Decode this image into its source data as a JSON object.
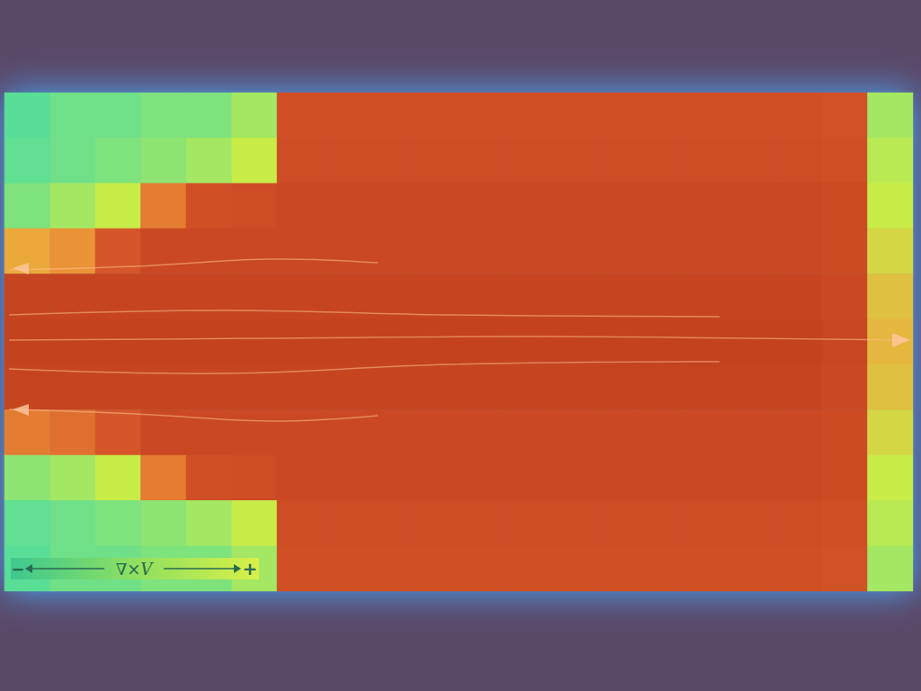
{
  "chart_data": {
    "type": "heatmap",
    "tick_labels": false,
    "grid": false,
    "cells": [
      [
        0.35,
        0.38,
        0.38,
        0.4,
        0.4,
        0.45,
        0.9,
        0.9,
        0.9,
        0.9,
        0.9,
        0.9,
        0.9,
        0.9,
        0.9,
        0.9,
        0.9,
        0.9,
        0.88,
        0.45
      ],
      [
        0.36,
        0.38,
        0.4,
        0.42,
        0.45,
        0.5,
        0.92,
        0.92,
        0.92,
        0.92,
        0.92,
        0.92,
        0.92,
        0.92,
        0.92,
        0.92,
        0.92,
        0.92,
        0.9,
        0.48
      ],
      [
        0.4,
        0.45,
        0.5,
        0.75,
        0.9,
        0.92,
        0.95,
        0.95,
        0.95,
        0.95,
        0.95,
        0.95,
        0.95,
        0.95,
        0.95,
        0.95,
        0.95,
        0.95,
        0.93,
        0.5
      ],
      [
        0.65,
        0.7,
        0.85,
        0.95,
        0.95,
        0.95,
        0.95,
        0.95,
        0.95,
        0.95,
        0.95,
        0.95,
        0.95,
        0.95,
        0.95,
        0.95,
        0.95,
        0.95,
        0.93,
        0.55
      ],
      [
        0.98,
        0.98,
        0.98,
        0.98,
        0.98,
        0.98,
        0.98,
        0.98,
        0.98,
        0.98,
        0.98,
        0.98,
        0.98,
        0.98,
        0.98,
        0.98,
        0.98,
        0.98,
        0.95,
        0.6
      ],
      [
        1,
        1,
        1,
        1,
        1,
        1,
        1,
        1,
        1,
        1,
        1,
        1,
        1,
        1,
        1,
        1,
        1,
        1,
        0.97,
        0.62
      ],
      [
        0.98,
        0.98,
        0.98,
        0.98,
        0.98,
        0.98,
        0.98,
        0.98,
        0.98,
        0.98,
        0.98,
        0.98,
        0.98,
        0.98,
        0.98,
        0.98,
        0.98,
        0.98,
        0.95,
        0.6
      ],
      [
        0.75,
        0.78,
        0.85,
        0.95,
        0.95,
        0.95,
        0.95,
        0.95,
        0.95,
        0.95,
        0.95,
        0.95,
        0.95,
        0.95,
        0.95,
        0.95,
        0.95,
        0.95,
        0.93,
        0.55
      ],
      [
        0.42,
        0.45,
        0.5,
        0.75,
        0.9,
        0.92,
        0.95,
        0.95,
        0.95,
        0.95,
        0.95,
        0.95,
        0.95,
        0.95,
        0.95,
        0.95,
        0.95,
        0.95,
        0.93,
        0.5
      ],
      [
        0.36,
        0.38,
        0.4,
        0.42,
        0.45,
        0.5,
        0.92,
        0.92,
        0.92,
        0.92,
        0.92,
        0.92,
        0.92,
        0.92,
        0.92,
        0.92,
        0.92,
        0.92,
        0.9,
        0.48
      ],
      [
        0.35,
        0.38,
        0.38,
        0.4,
        0.4,
        0.45,
        0.9,
        0.9,
        0.9,
        0.9,
        0.9,
        0.9,
        0.9,
        0.9,
        0.9,
        0.9,
        0.9,
        0.9,
        0.88,
        0.45
      ]
    ],
    "colorbar": {
      "label": "∇×V",
      "low_label": "−",
      "high_label": "+",
      "range": [
        0,
        1
      ]
    }
  }
}
